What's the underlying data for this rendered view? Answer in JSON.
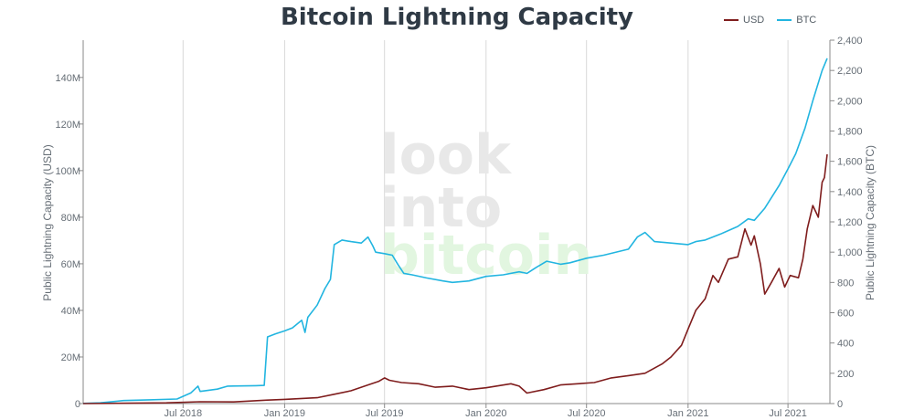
{
  "chart_data": {
    "type": "line",
    "title": "Bitcoin Lightning Capacity",
    "watermark": [
      "look",
      "into",
      "bitcoin"
    ],
    "colors": {
      "usd": "#7f1d1d",
      "btc": "#22b5e0",
      "grid": "#d9d9d9",
      "watermark_gray": "#e8e8e8",
      "watermark_green": "#e2f6e0"
    },
    "legend": [
      {
        "name": "USD",
        "color": "#7f1d1d"
      },
      {
        "name": "BTC",
        "color": "#22b5e0"
      }
    ],
    "legend_position": "top-right",
    "grid": "vertical",
    "x_ticks": [
      "Jul 2018",
      "Jan 2019",
      "Jul 2019",
      "Jan 2020",
      "Jul 2020",
      "Jan 2021",
      "Jul 2021"
    ],
    "x_range": [
      "2018-01-01",
      "2021-09-15"
    ],
    "y_left": {
      "label": "Public Lightning Capacity (USD)",
      "range": [
        0,
        156000000
      ],
      "ticks": [
        [
          0,
          "0"
        ],
        [
          20000000,
          "20M"
        ],
        [
          40000000,
          "40M"
        ],
        [
          60000000,
          "60M"
        ],
        [
          80000000,
          "80M"
        ],
        [
          100000000,
          "100M"
        ],
        [
          120000000,
          "120M"
        ],
        [
          140000000,
          "140M"
        ]
      ]
    },
    "y_right": {
      "label": "Public Lightning Capacity (BTC)",
      "range": [
        0,
        2400
      ],
      "ticks": [
        [
          0,
          "0"
        ],
        [
          200,
          "200"
        ],
        [
          400,
          "400"
        ],
        [
          600,
          "600"
        ],
        [
          800,
          "800"
        ],
        [
          1000,
          "1,000"
        ],
        [
          1200,
          "1,200"
        ],
        [
          1400,
          "1,400"
        ],
        [
          1600,
          "1,600"
        ],
        [
          1800,
          "1,800"
        ],
        [
          2000,
          "2,000"
        ],
        [
          2200,
          "2,200"
        ],
        [
          2400,
          "2,400"
        ]
      ]
    },
    "series": [
      {
        "name": "BTC",
        "axis": "right",
        "points": [
          [
            "2018-01-01",
            1
          ],
          [
            "2018-02-01",
            5
          ],
          [
            "2018-03-15",
            20
          ],
          [
            "2018-05-01",
            25
          ],
          [
            "2018-06-20",
            30
          ],
          [
            "2018-07-15",
            70
          ],
          [
            "2018-07-28",
            115
          ],
          [
            "2018-08-01",
            80
          ],
          [
            "2018-09-01",
            95
          ],
          [
            "2018-09-20",
            115
          ],
          [
            "2018-11-10",
            118
          ],
          [
            "2018-11-25",
            120
          ],
          [
            "2018-12-01",
            440
          ],
          [
            "2018-12-15",
            460
          ],
          [
            "2019-01-01",
            480
          ],
          [
            "2019-01-15",
            500
          ],
          [
            "2019-02-01",
            550
          ],
          [
            "2019-02-07",
            470
          ],
          [
            "2019-02-12",
            570
          ],
          [
            "2019-03-01",
            650
          ],
          [
            "2019-03-15",
            760
          ],
          [
            "2019-03-25",
            820
          ],
          [
            "2019-04-01",
            1050
          ],
          [
            "2019-04-15",
            1080
          ],
          [
            "2019-05-01",
            1070
          ],
          [
            "2019-05-20",
            1060
          ],
          [
            "2019-06-01",
            1100
          ],
          [
            "2019-06-10",
            1040
          ],
          [
            "2019-06-15",
            1000
          ],
          [
            "2019-07-01",
            990
          ],
          [
            "2019-07-15",
            980
          ],
          [
            "2019-07-25",
            920
          ],
          [
            "2019-08-05",
            860
          ],
          [
            "2019-08-20",
            850
          ],
          [
            "2019-09-15",
            830
          ],
          [
            "2019-10-15",
            810
          ],
          [
            "2019-11-01",
            800
          ],
          [
            "2019-12-01",
            810
          ],
          [
            "2020-01-01",
            840
          ],
          [
            "2020-02-01",
            850
          ],
          [
            "2020-03-01",
            870
          ],
          [
            "2020-03-15",
            860
          ],
          [
            "2020-04-01",
            900
          ],
          [
            "2020-04-20",
            940
          ],
          [
            "2020-05-15",
            920
          ],
          [
            "2020-06-01",
            930
          ],
          [
            "2020-07-01",
            960
          ],
          [
            "2020-08-01",
            980
          ],
          [
            "2020-09-15",
            1020
          ],
          [
            "2020-10-01",
            1100
          ],
          [
            "2020-10-15",
            1130
          ],
          [
            "2020-11-01",
            1070
          ],
          [
            "2020-12-01",
            1060
          ],
          [
            "2021-01-01",
            1050
          ],
          [
            "2021-01-15",
            1070
          ],
          [
            "2021-02-01",
            1080
          ],
          [
            "2021-03-01",
            1120
          ],
          [
            "2021-04-01",
            1170
          ],
          [
            "2021-04-20",
            1220
          ],
          [
            "2021-05-01",
            1210
          ],
          [
            "2021-05-20",
            1290
          ],
          [
            "2021-06-15",
            1440
          ],
          [
            "2021-07-01",
            1550
          ],
          [
            "2021-07-15",
            1650
          ],
          [
            "2021-08-01",
            1820
          ],
          [
            "2021-08-15",
            2000
          ],
          [
            "2021-09-01",
            2200
          ],
          [
            "2021-09-10",
            2280
          ]
        ]
      },
      {
        "name": "USD",
        "axis": "left",
        "points": [
          [
            "2018-01-01",
            0
          ],
          [
            "2018-06-01",
            300000
          ],
          [
            "2018-08-01",
            800000
          ],
          [
            "2018-10-01",
            700000
          ],
          [
            "2018-12-01",
            1500000
          ],
          [
            "2019-01-01",
            1800000
          ],
          [
            "2019-03-01",
            2500000
          ],
          [
            "2019-04-01",
            4000000
          ],
          [
            "2019-05-01",
            5500000
          ],
          [
            "2019-06-01",
            8000000
          ],
          [
            "2019-06-20",
            9500000
          ],
          [
            "2019-07-01",
            11000000
          ],
          [
            "2019-07-10",
            10000000
          ],
          [
            "2019-08-01",
            9000000
          ],
          [
            "2019-09-01",
            8500000
          ],
          [
            "2019-10-01",
            7000000
          ],
          [
            "2019-11-01",
            7500000
          ],
          [
            "2019-12-01",
            6000000
          ],
          [
            "2020-01-01",
            6800000
          ],
          [
            "2020-02-15",
            8500000
          ],
          [
            "2020-03-01",
            7500000
          ],
          [
            "2020-03-15",
            4500000
          ],
          [
            "2020-04-15",
            6000000
          ],
          [
            "2020-05-15",
            8000000
          ],
          [
            "2020-06-15",
            8500000
          ],
          [
            "2020-07-15",
            9000000
          ],
          [
            "2020-08-15",
            11000000
          ],
          [
            "2020-09-15",
            12000000
          ],
          [
            "2020-10-15",
            13000000
          ],
          [
            "2020-11-15",
            17000000
          ],
          [
            "2020-12-01",
            20000000
          ],
          [
            "2020-12-20",
            25000000
          ],
          [
            "2021-01-01",
            32000000
          ],
          [
            "2021-01-15",
            40000000
          ],
          [
            "2021-02-01",
            45000000
          ],
          [
            "2021-02-15",
            55000000
          ],
          [
            "2021-02-25",
            52000000
          ],
          [
            "2021-03-15",
            62000000
          ],
          [
            "2021-04-01",
            63000000
          ],
          [
            "2021-04-14",
            75000000
          ],
          [
            "2021-04-25",
            68000000
          ],
          [
            "2021-05-01",
            72000000
          ],
          [
            "2021-05-12",
            60000000
          ],
          [
            "2021-05-20",
            47000000
          ],
          [
            "2021-06-01",
            52000000
          ],
          [
            "2021-06-15",
            58000000
          ],
          [
            "2021-06-25",
            50000000
          ],
          [
            "2021-07-05",
            55000000
          ],
          [
            "2021-07-20",
            54000000
          ],
          [
            "2021-07-28",
            62000000
          ],
          [
            "2021-08-05",
            75000000
          ],
          [
            "2021-08-15",
            85000000
          ],
          [
            "2021-08-25",
            80000000
          ],
          [
            "2021-09-01",
            95000000
          ],
          [
            "2021-09-05",
            97000000
          ],
          [
            "2021-09-10",
            107000000
          ]
        ]
      }
    ]
  }
}
